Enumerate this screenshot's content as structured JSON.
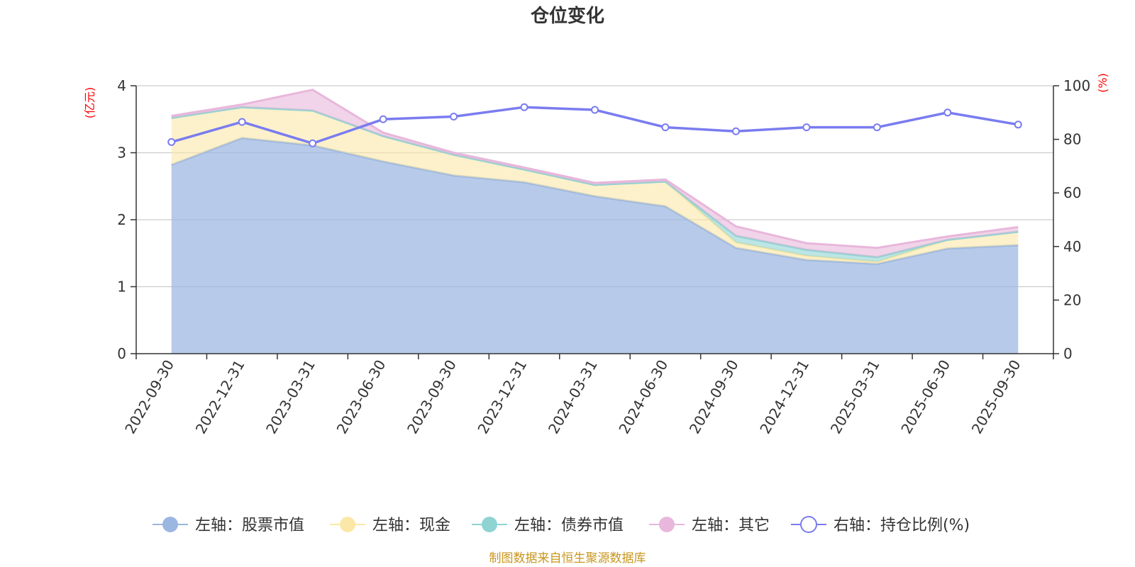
{
  "chart_data": {
    "type": "area",
    "title": "仓位变化",
    "categories": [
      "2022-09-30",
      "2022-12-31",
      "2023-03-31",
      "2023-06-30",
      "2023-09-30",
      "2023-12-31",
      "2024-03-31",
      "2024-06-30",
      "2024-09-30",
      "2024-12-31",
      "2025-03-31",
      "2025-06-30",
      "2025-09-30"
    ],
    "left_axis": {
      "unit": "(亿元)",
      "ylim": [
        0,
        4
      ],
      "ticks": [
        "0",
        "1",
        "2",
        "3",
        "4"
      ]
    },
    "right_axis": {
      "unit": "(%)",
      "ylim": [
        0,
        100
      ],
      "ticks": [
        "0",
        "20",
        "40",
        "60",
        "80",
        "100"
      ]
    },
    "grid": true,
    "series": [
      {
        "name": "左轴：股票市值",
        "axis": "left",
        "kind": "stacked-area",
        "color": "#9bb6e0",
        "values": [
          2.82,
          3.22,
          3.11,
          2.87,
          2.66,
          2.56,
          2.35,
          2.2,
          1.58,
          1.4,
          1.34,
          1.57,
          1.62
        ]
      },
      {
        "name": "左轴：现金",
        "axis": "left",
        "kind": "stacked-area",
        "color": "#fbe8a8",
        "values": [
          0.7,
          0.46,
          0.52,
          0.38,
          0.31,
          0.19,
          0.17,
          0.37,
          0.08,
          0.06,
          0.03,
          0.13,
          0.2
        ]
      },
      {
        "name": "左轴：债券市值",
        "axis": "left",
        "kind": "stacked-area",
        "color": "#8fd3d3",
        "values": [
          0,
          0,
          0,
          0,
          0,
          0,
          0,
          0,
          0.1,
          0.09,
          0.07,
          0,
          0
        ]
      },
      {
        "name": "左轴：其它",
        "axis": "left",
        "kind": "stacked-area",
        "color": "#e8b7db",
        "values": [
          0.03,
          0.04,
          0.31,
          0.05,
          0.03,
          0.03,
          0.03,
          0.03,
          0.14,
          0.1,
          0.14,
          0.05,
          0.07
        ]
      },
      {
        "name": "右轴：持仓比例(%)",
        "axis": "right",
        "kind": "line",
        "color": "#7a7cf0",
        "values": [
          79,
          86.5,
          78.5,
          87.5,
          88.5,
          92,
          91,
          84.5,
          83,
          84.5,
          84.5,
          90,
          85.5
        ]
      }
    ],
    "legend_position": "bottom-center",
    "source": "制图数据来自恒生聚源数据库"
  }
}
